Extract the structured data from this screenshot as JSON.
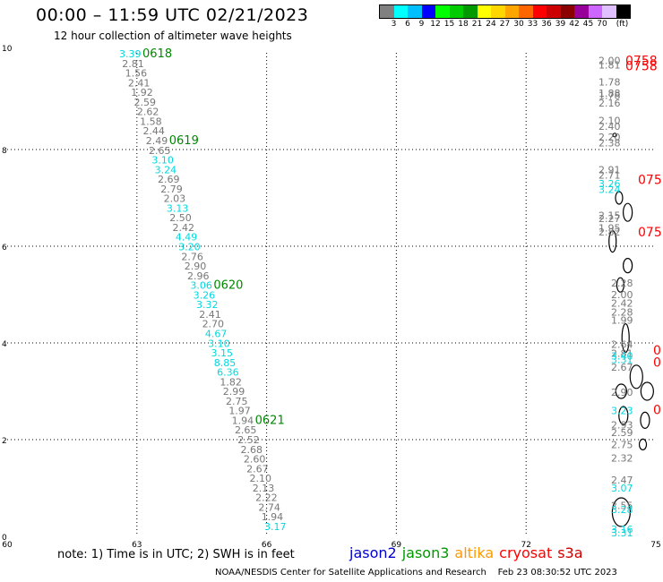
{
  "header": {
    "title": "00:00 – 11:59 UTC 02/21/2023",
    "subtitle": "12 hour collection of altimeter wave heights"
  },
  "legend": {
    "colors": [
      "#808080",
      "#00ffff",
      "#00bfff",
      "#0000ff",
      "#00ff00",
      "#00cc00",
      "#009900",
      "#ffff00",
      "#ffd700",
      "#ffa500",
      "#ff6600",
      "#ff0000",
      "#cc0000",
      "#8b0000",
      "#990099",
      "#cc66ff",
      "#e0c0ff",
      "#000000"
    ],
    "ticks": [
      "3",
      "6",
      "9",
      "12",
      "15",
      "18",
      "21",
      "24",
      "27",
      "30",
      "33",
      "36",
      "39",
      "42",
      "45",
      "70"
    ],
    "unit": "(ft)"
  },
  "axes": {
    "y_ticks": [
      {
        "v": 0,
        "label": "0"
      },
      {
        "v": 2,
        "label": "2"
      },
      {
        "v": 4,
        "label": "4"
      },
      {
        "v": 6,
        "label": "6"
      },
      {
        "v": 8,
        "label": "8"
      },
      {
        "v": 10,
        "label": "10"
      }
    ],
    "x_ticks": [
      {
        "v": 60,
        "label": "60"
      },
      {
        "v": 63,
        "label": "63"
      },
      {
        "v": 66,
        "label": "66"
      },
      {
        "v": 69,
        "label": "69"
      },
      {
        "v": 72,
        "label": "72"
      },
      {
        "v": 75,
        "label": "75"
      }
    ],
    "lon_range": [
      60,
      75
    ],
    "lat_range": [
      0,
      10
    ]
  },
  "track1": {
    "values": [
      {
        "t": "3.39",
        "c": "c"
      },
      {
        "t": "2.81",
        "c": "g"
      },
      {
        "t": "1.56",
        "c": "g"
      },
      {
        "t": "2.41",
        "c": "g"
      },
      {
        "t": "1.92",
        "c": "g"
      },
      {
        "t": "2.59",
        "c": "g"
      },
      {
        "t": "2.62",
        "c": "g"
      },
      {
        "t": "1.58",
        "c": "g"
      },
      {
        "t": "2.44",
        "c": "g"
      },
      {
        "t": "2.49",
        "c": "g"
      },
      {
        "t": "2.65",
        "c": "g"
      },
      {
        "t": "3.10",
        "c": "c"
      },
      {
        "t": "3.24",
        "c": "c"
      },
      {
        "t": "2.69",
        "c": "g"
      },
      {
        "t": "2.79",
        "c": "g"
      },
      {
        "t": "2.03",
        "c": "g"
      },
      {
        "t": "3.13",
        "c": "c"
      },
      {
        "t": "2.50",
        "c": "g"
      },
      {
        "t": "2.42",
        "c": "g"
      },
      {
        "t": "4.49",
        "c": "c"
      },
      {
        "t": "3.20",
        "c": "c"
      },
      {
        "t": "2.76",
        "c": "g"
      },
      {
        "t": "2.90",
        "c": "g"
      },
      {
        "t": "2.96",
        "c": "g"
      },
      {
        "t": "3.06",
        "c": "c"
      },
      {
        "t": "3.26",
        "c": "c"
      },
      {
        "t": "3.32",
        "c": "c"
      },
      {
        "t": "2.41",
        "c": "g"
      },
      {
        "t": "2.70",
        "c": "g"
      },
      {
        "t": "4.67",
        "c": "c"
      },
      {
        "t": "3.10",
        "c": "c"
      },
      {
        "t": "3.15",
        "c": "c"
      },
      {
        "t": "8.85",
        "c": "c"
      },
      {
        "t": "6.36",
        "c": "c"
      },
      {
        "t": "1.82",
        "c": "g"
      },
      {
        "t": "2.99",
        "c": "g"
      },
      {
        "t": "2.75",
        "c": "g"
      },
      {
        "t": "1.97",
        "c": "g"
      },
      {
        "t": "1.94",
        "c": "g"
      },
      {
        "t": "2.65",
        "c": "g"
      },
      {
        "t": "2.52",
        "c": "g"
      },
      {
        "t": "2.68",
        "c": "g"
      },
      {
        "t": "2.60",
        "c": "g"
      },
      {
        "t": "2.67",
        "c": "g"
      },
      {
        "t": "2.10",
        "c": "g"
      },
      {
        "t": "2.13",
        "c": "g"
      },
      {
        "t": "2.22",
        "c": "g"
      },
      {
        "t": "2.74",
        "c": "g"
      },
      {
        "t": "1.94",
        "c": "g"
      },
      {
        "t": "3.17",
        "c": "c"
      }
    ],
    "times": [
      {
        "t": "0618",
        "i": 0
      },
      {
        "t": "0619",
        "i": 9
      },
      {
        "t": "0620",
        "i": 24
      },
      {
        "t": "0621",
        "i": 38
      }
    ]
  },
  "track2": {
    "values": [
      {
        "t": "2.00",
        "lat": 9.84,
        "c": "g"
      },
      {
        "t": "1.81",
        "lat": 9.75,
        "c": "g"
      },
      {
        "t": "1.78",
        "lat": 9.4,
        "c": "g"
      },
      {
        "t": "1.88",
        "lat": 9.17,
        "c": "g"
      },
      {
        "t": "1.78",
        "lat": 9.12,
        "c": "g"
      },
      {
        "t": "2.16",
        "lat": 8.96,
        "c": "g"
      },
      {
        "t": "2.10",
        "lat": 8.6,
        "c": "g"
      },
      {
        "t": "2.40",
        "lat": 8.48,
        "c": "g"
      },
      {
        "t": "2.20",
        "lat": 8.26,
        "c": "g"
      },
      {
        "t": "2.38",
        "lat": 8.14,
        "c": "g"
      },
      {
        "t": "2.91",
        "lat": 7.58,
        "c": "g"
      },
      {
        "t": "2.71",
        "lat": 7.47,
        "c": "g"
      },
      {
        "t": "3.26",
        "lat": 7.3,
        "c": "c"
      },
      {
        "t": "3.24",
        "lat": 7.18,
        "c": "c"
      },
      {
        "t": "2.15",
        "lat": 6.64,
        "c": "g"
      },
      {
        "t": "2.27",
        "lat": 6.57,
        "c": "g"
      },
      {
        "t": "1.95",
        "lat": 6.38,
        "c": "g"
      },
      {
        "t": "2.82",
        "lat": 6.3,
        "c": "g"
      },
      {
        "t": "2.28",
        "lat": 5.24,
        "c": "g"
      },
      {
        "t": "2.00",
        "lat": 5.0,
        "c": "g"
      },
      {
        "t": "2.42",
        "lat": 4.82,
        "c": "g"
      },
      {
        "t": "2.28",
        "lat": 4.64,
        "c": "g"
      },
      {
        "t": "1.99",
        "lat": 4.47,
        "c": "g"
      },
      {
        "t": "2.64",
        "lat": 3.97,
        "c": "g"
      },
      {
        "t": "2.81",
        "lat": 3.79,
        "c": "g"
      },
      {
        "t": "3.40",
        "lat": 3.73,
        "c": "c"
      },
      {
        "t": "3.31",
        "lat": 3.66,
        "c": "c"
      },
      {
        "t": "2.67",
        "lat": 3.5,
        "c": "g"
      },
      {
        "t": "2.90",
        "lat": 2.98,
        "c": "g"
      },
      {
        "t": "3.23",
        "lat": 2.6,
        "c": "c"
      },
      {
        "t": "2.93",
        "lat": 2.31,
        "c": "g"
      },
      {
        "t": "2.59",
        "lat": 2.15,
        "c": "g"
      },
      {
        "t": "2.75",
        "lat": 1.9,
        "c": "g"
      },
      {
        "t": "2.32",
        "lat": 1.62,
        "c": "g"
      },
      {
        "t": "2.47",
        "lat": 1.17,
        "c": "g"
      },
      {
        "t": "3.07",
        "lat": 1.0,
        "c": "c"
      },
      {
        "t": "2.55",
        "lat": 0.64,
        "c": "g"
      },
      {
        "t": "3.28",
        "lat": 0.56,
        "c": "c"
      },
      {
        "t": "3.16",
        "lat": 0.15,
        "c": "c"
      },
      {
        "t": "3.31",
        "lat": 0.07,
        "c": "c"
      }
    ],
    "times": [
      {
        "t": "0758",
        "lat": 9.84
      },
      {
        "t": "0758",
        "lat": 9.73
      },
      {
        "t": "075",
        "lat": 7.38
      },
      {
        "t": "075",
        "lat": 6.3
      },
      {
        "t": "0",
        "lat": 3.85
      },
      {
        "t": "0",
        "lat": 3.6
      },
      {
        "t": "0",
        "lat": 2.62
      }
    ]
  },
  "islands": [
    {
      "lon": 74.18,
      "lat": 5.2,
      "rx": 4,
      "ry": 8
    },
    {
      "lon": 74.3,
      "lat": 4.1,
      "rx": 4,
      "ry": 16
    },
    {
      "lon": 74.55,
      "lat": 3.3,
      "rx": 7,
      "ry": 13
    },
    {
      "lon": 74.2,
      "lat": 3.0,
      "rx": 6,
      "ry": 8
    },
    {
      "lon": 74.8,
      "lat": 3.0,
      "rx": 7,
      "ry": 10
    },
    {
      "lon": 74.25,
      "lat": 2.5,
      "rx": 5,
      "ry": 10
    },
    {
      "lon": 74.75,
      "lat": 2.4,
      "rx": 5,
      "ry": 9
    },
    {
      "lon": 74.7,
      "lat": 1.9,
      "rx": 4,
      "ry": 6
    },
    {
      "lon": 74.2,
      "lat": 0.5,
      "rx": 10,
      "ry": 16
    },
    {
      "lon": 74.35,
      "lat": 5.6,
      "rx": 5,
      "ry": 8
    },
    {
      "lon": 74.0,
      "lat": 6.1,
      "rx": 4,
      "ry": 12
    },
    {
      "lon": 74.35,
      "lat": 6.7,
      "rx": 5,
      "ry": 10
    },
    {
      "lon": 74.15,
      "lat": 7.0,
      "rx": 4,
      "ry": 7
    },
    {
      "lon": 74.05,
      "lat": 8.3,
      "rx": 2,
      "ry": 2
    }
  ],
  "footer": {
    "note": "note: 1) Time is in UTC; 2) SWH is in feet",
    "satellites": [
      {
        "name": "jason2",
        "color": "#0000cc"
      },
      {
        "name": "jason3",
        "color": "#009900"
      },
      {
        "name": "altika",
        "color": "#ff9900"
      },
      {
        "name": "cryosat",
        "color": "#ff0000"
      },
      {
        "name": "s3a",
        "color": "#cc0000"
      }
    ],
    "credit": "NOAA/NESDIS Center for Satellite Applications and Research",
    "timestamp": "Feb 23 08:30:52 UTC 2023"
  }
}
